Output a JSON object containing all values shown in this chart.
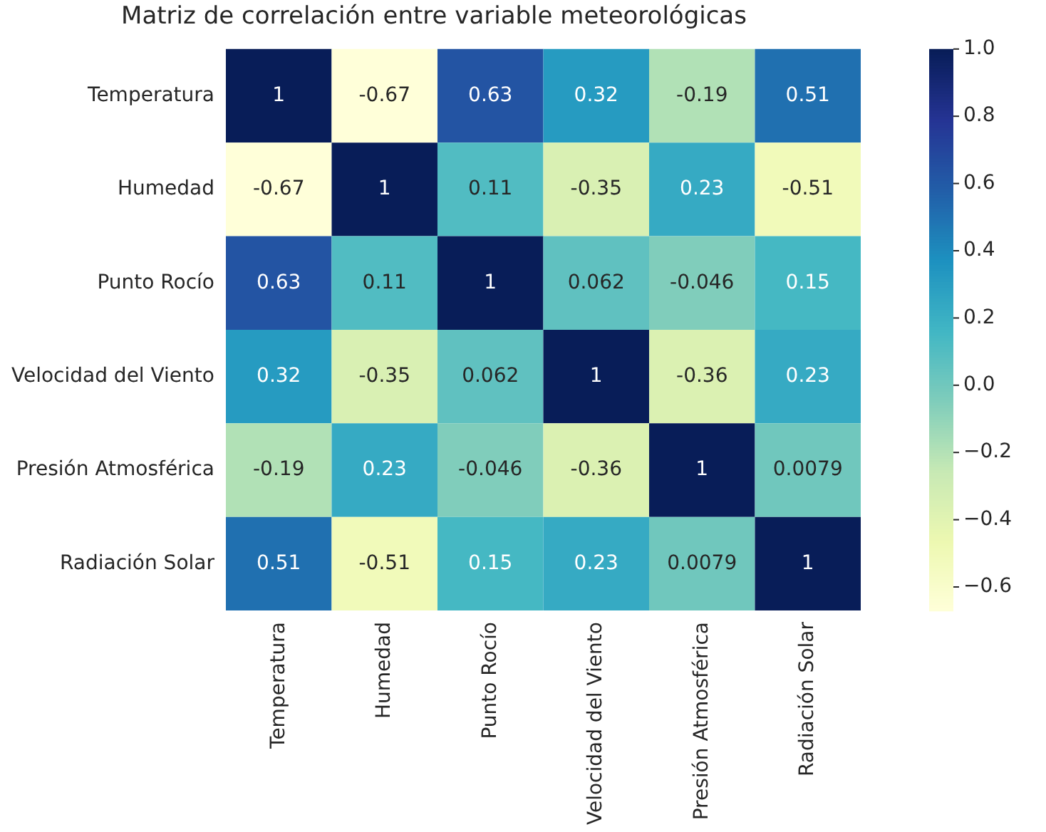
{
  "chart_data": {
    "type": "heatmap",
    "title": "Matriz de correlación entre variable meteorológicas",
    "categories": [
      "Temperatura",
      "Humedad",
      "Punto Rocío",
      "Velocidad del Viento",
      "Presión Atmosférica",
      "Radiación Solar"
    ],
    "y_categories": [
      "Temperatura",
      "Humedad",
      "Punto Rocío",
      "Velocidad del Viento",
      "Presión Atmosférica",
      "Radiación Solar"
    ],
    "cells": [
      [
        1,
        -0.67,
        0.63,
        0.32,
        -0.19,
        0.51
      ],
      [
        -0.67,
        1,
        0.11,
        -0.35,
        0.23,
        -0.51
      ],
      [
        0.63,
        0.11,
        1,
        0.062,
        -0.046,
        0.15
      ],
      [
        0.32,
        -0.35,
        0.062,
        1,
        -0.36,
        0.23
      ],
      [
        -0.19,
        0.23,
        -0.046,
        -0.36,
        1,
        0.0079
      ],
      [
        0.51,
        -0.51,
        0.15,
        0.23,
        0.0079,
        1
      ]
    ],
    "data_labels": true,
    "clim": [
      -0.67,
      1
    ],
    "cticks": [
      {
        "value": -0.6,
        "label": "−0.6"
      },
      {
        "value": -0.4,
        "label": "−0.4"
      },
      {
        "value": -0.2,
        "label": "−0.2"
      },
      {
        "value": 0,
        "label": "0.0"
      },
      {
        "value": 0.2,
        "label": "0.2"
      },
      {
        "value": 0.4,
        "label": "0.4"
      },
      {
        "value": 0.6,
        "label": "0.6"
      },
      {
        "value": 0.8,
        "label": "0.8"
      },
      {
        "value": 1,
        "label": "1.0"
      }
    ]
  }
}
